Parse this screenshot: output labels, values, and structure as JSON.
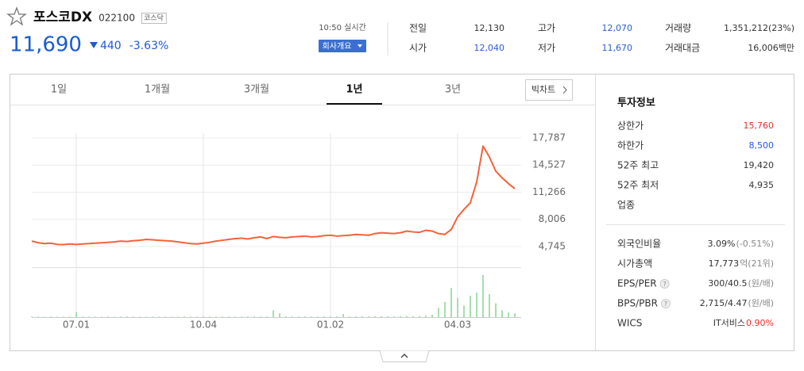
{
  "header": {
    "name": "포스코DX",
    "code": "022100",
    "market": "코스닥",
    "price": "11,690",
    "change": "440",
    "change_rate": "-3.63%",
    "time": "10:50 실시간",
    "company_button": "회사개요"
  },
  "quote_table": {
    "rows": [
      [
        {
          "label": "전일",
          "value": "12,130",
          "color": "#333333"
        },
        {
          "label": "고가",
          "value": "12,070",
          "color": "#2a5bd7"
        },
        {
          "label": "거래량",
          "value": "1,351,212(23%)",
          "color": "#333333"
        }
      ],
      [
        {
          "label": "시가",
          "value": "12,040",
          "color": "#2a5bd7"
        },
        {
          "label": "저가",
          "value": "11,670",
          "color": "#2a5bd7"
        },
        {
          "label": "거래대금",
          "value": "16,006백만",
          "color": "#333333"
        }
      ]
    ]
  },
  "tabs": {
    "items": [
      "1일",
      "1개월",
      "3개월",
      "1년",
      "3년"
    ],
    "active": 3,
    "big_chart": "빅차트"
  },
  "invest_info": {
    "title": "투자정보",
    "group1": [
      {
        "label": "상한가",
        "value": "15,760",
        "color": "#e8312a"
      },
      {
        "label": "하한가",
        "value": "8,500",
        "color": "#2a5bd7"
      },
      {
        "label": "52주 최고",
        "value": "19,420",
        "color": "#333333"
      },
      {
        "label": "52주 최저",
        "value": "4,935",
        "color": "#333333"
      },
      {
        "label": "업종"
      }
    ],
    "group2": [
      {
        "label": "외국인비율",
        "value": "3.09%",
        "extra": "(-0.51%)",
        "extra_color": "#888888"
      },
      {
        "label": "시가총액",
        "value": "17,773",
        "extra": "억(21위)",
        "extra_color": "#888888"
      },
      {
        "label": "EPS/PER",
        "help": true,
        "value": "300/40.5",
        "extra": "(원/배)",
        "extra_color": "#888888"
      },
      {
        "label": "BPS/PBR",
        "help": true,
        "value": "2,715/4.47",
        "extra": "(원/배)",
        "extra_color": "#888888"
      },
      {
        "label": "WICS",
        "value": "IT서비스",
        "extra": "0.90%",
        "extra_color": "#e8312a"
      }
    ]
  },
  "help_icon": "?",
  "chart_data": {
    "type": "line",
    "categories": [
      null,
      null,
      null,
      null,
      null,
      null,
      null,
      "07.01",
      null,
      null,
      null,
      null,
      null,
      null,
      null,
      null,
      null,
      null,
      null,
      null,
      null,
      null,
      null,
      null,
      null,
      null,
      null,
      "10.04",
      null,
      null,
      null,
      null,
      null,
      null,
      null,
      null,
      null,
      null,
      null,
      null,
      null,
      null,
      null,
      null,
      null,
      null,
      null,
      "01.02",
      null,
      null,
      null,
      null,
      null,
      null,
      null,
      null,
      null,
      null,
      null,
      null,
      null,
      null,
      null,
      null,
      null,
      null,
      null,
      "04.03",
      null,
      null,
      null,
      null,
      null,
      null,
      null,
      null,
      null
    ],
    "series": [
      {
        "color": "#f4623a",
        "values": [
          5400,
          5200,
          5100,
          5150,
          5000,
          4980,
          5050,
          5000,
          5050,
          5100,
          5150,
          5200,
          5250,
          5300,
          5400,
          5350,
          5450,
          5500,
          5600,
          5550,
          5500,
          5450,
          5400,
          5300,
          5200,
          5100,
          5050,
          5150,
          5250,
          5400,
          5500,
          5600,
          5700,
          5750,
          5650,
          5800,
          5900,
          5700,
          5950,
          5850,
          5800,
          5900,
          5950,
          6000,
          5900,
          5950,
          6050,
          6100,
          6000,
          6050,
          6100,
          6200,
          6150,
          6100,
          6300,
          6400,
          6350,
          6300,
          6400,
          6600,
          6500,
          6450,
          6700,
          6600,
          6300,
          6200,
          6800,
          8300,
          9200,
          10000,
          12500,
          16800,
          15500,
          13800,
          13000,
          12300,
          11690
        ]
      },
      {
        "type": "bar",
        "axis": "y2",
        "color": "#a3dfae",
        "values": [
          90000,
          70000,
          60000,
          80000,
          50000,
          60000,
          70000,
          600000,
          80000,
          60000,
          50000,
          60000,
          70000,
          50000,
          60000,
          80000,
          70000,
          60000,
          50000,
          60000,
          70000,
          60000,
          50000,
          60000,
          80000,
          70000,
          60000,
          90000,
          70000,
          60000,
          80000,
          70000,
          60000,
          70000,
          80000,
          90000,
          70000,
          80000,
          900000,
          500000,
          100000,
          80000,
          70000,
          90000,
          80000,
          70000,
          80000,
          90000,
          100000,
          400000,
          90000,
          80000,
          100000,
          90000,
          120000,
          110000,
          100000,
          90000,
          130000,
          150000,
          120000,
          140000,
          200000,
          300000,
          1200000,
          2000000,
          3800000,
          2500000,
          1500000,
          2800000,
          3200000,
          5500000,
          3000000,
          1800000,
          900000,
          600000,
          500000
        ]
      }
    ],
    "ylim": [
      2936,
      19120
    ],
    "yticks": [
      {
        "value": 17787,
        "label": "17,787"
      },
      {
        "value": 14527,
        "label": "14,527"
      },
      {
        "value": 11266,
        "label": "11,266"
      },
      {
        "value": 8006,
        "label": "8,006"
      },
      {
        "value": 4745,
        "label": "4,745"
      }
    ],
    "y2lim": [
      0,
      6000000
    ],
    "grid": true
  }
}
